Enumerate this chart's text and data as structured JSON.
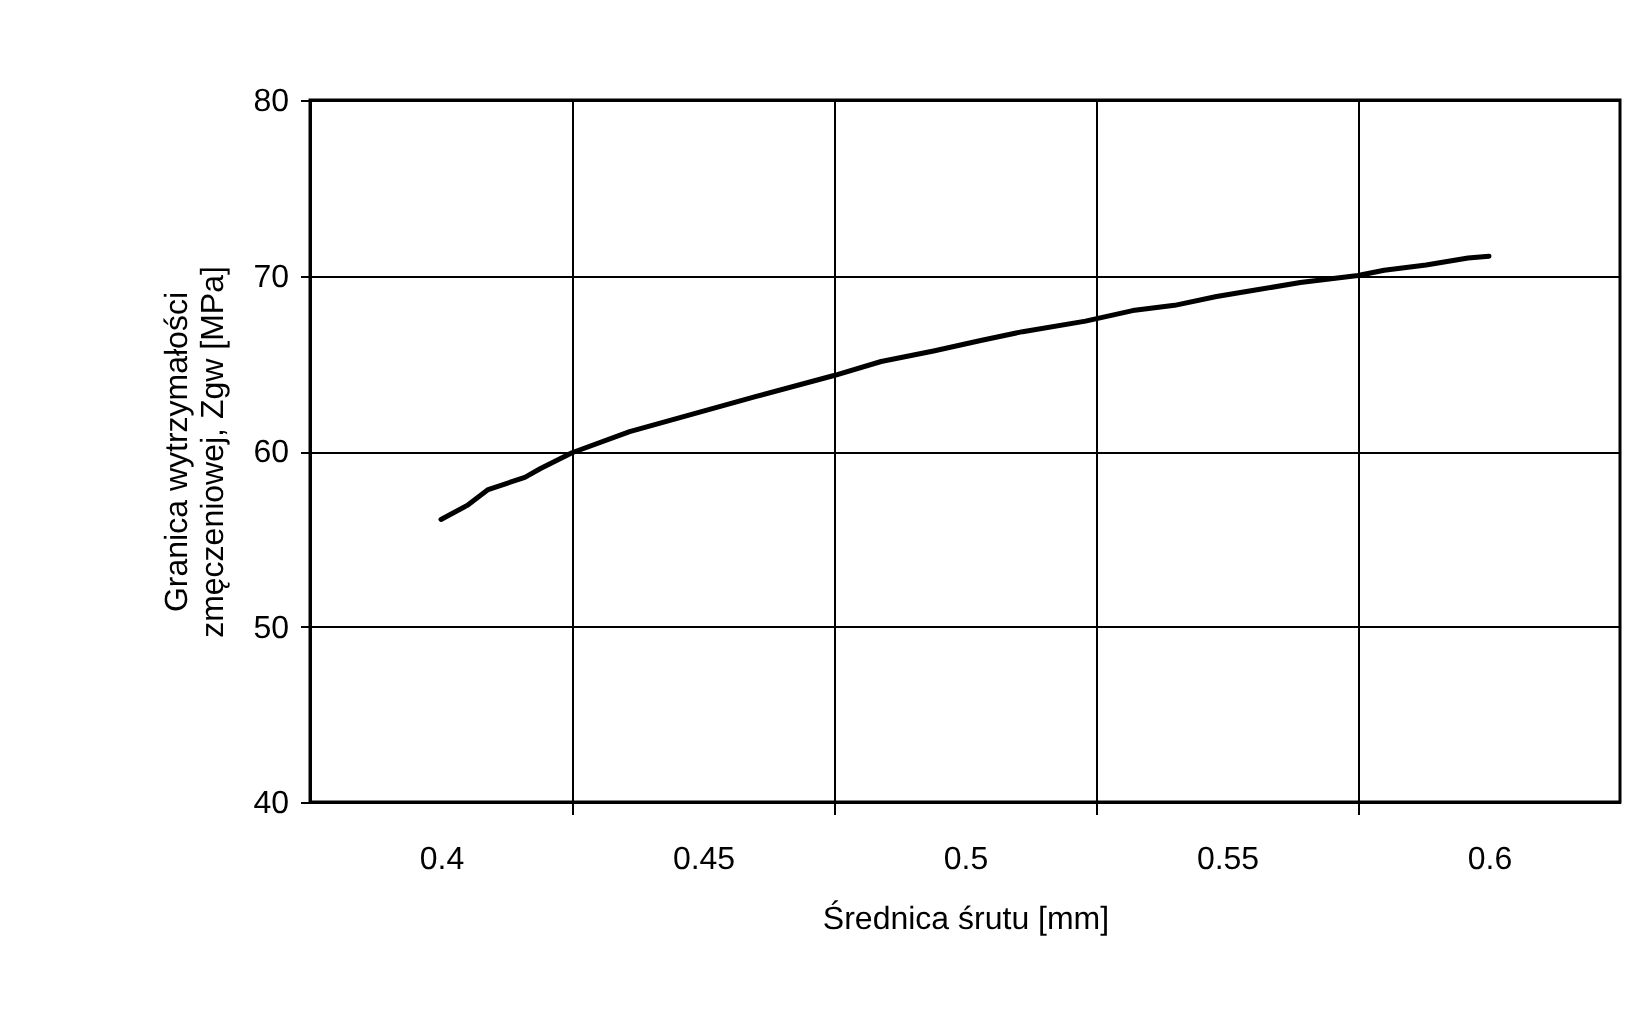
{
  "chart_data": {
    "type": "line",
    "xlabel": "Średnica śrutu [mm]",
    "ylabel": "Granica wytrzymałości\nzmęczeniowej, Zgw [MPa]",
    "x": [
      0.4,
      0.405,
      0.409,
      0.416,
      0.419,
      0.425,
      0.436,
      0.448,
      0.46,
      0.475,
      0.484,
      0.494,
      0.503,
      0.511,
      0.523,
      0.532,
      0.54,
      0.548,
      0.556,
      0.564,
      0.575,
      0.58,
      0.588,
      0.596,
      0.6
    ],
    "series": [
      {
        "color": "#000000",
        "values": [
          56.1,
          56.9,
          57.8,
          58.5,
          59.0,
          59.9,
          61.1,
          62.1,
          63.1,
          64.3,
          65.1,
          65.7,
          66.3,
          66.8,
          67.4,
          68.0,
          68.3,
          68.8,
          69.2,
          69.6,
          70.0,
          70.3,
          70.6,
          71.0,
          71.1
        ]
      }
    ],
    "xlim": [
      0.375,
      0.625
    ],
    "xticks": [
      0.4,
      0.45,
      0.5,
      0.55,
      0.6,
      {
        "value": 0.425,
        "label": null
      },
      {
        "value": 0.475,
        "label": null
      },
      {
        "value": 0.525,
        "label": null
      },
      {
        "value": 0.575,
        "label": null
      }
    ],
    "ylim": [
      40,
      80
    ],
    "yticks": [
      40,
      50,
      60,
      70,
      80
    ],
    "grid": true,
    "marker": "none",
    "line_style": "solid"
  }
}
